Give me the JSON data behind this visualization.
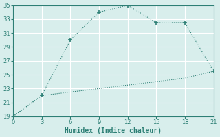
{
  "xlabel": "Humidex (Indice chaleur)",
  "line1_x": [
    0,
    3,
    6,
    9,
    12,
    15,
    18,
    21
  ],
  "line1_y": [
    19,
    22,
    30,
    34,
    35,
    32.5,
    32.5,
    25.5
  ],
  "line2_x": [
    0,
    3,
    6,
    9,
    12,
    15,
    18,
    21
  ],
  "line2_y": [
    19,
    22,
    22.5,
    23,
    23.5,
    24,
    24.5,
    25.5
  ],
  "line_color": "#2d7f75",
  "marker": "+",
  "bg_color": "#d8eeec",
  "grid_color": "#ffffff",
  "xlim": [
    0,
    21
  ],
  "ylim": [
    19,
    35
  ],
  "xticks": [
    0,
    3,
    6,
    9,
    12,
    15,
    18,
    21
  ],
  "yticks": [
    19,
    21,
    23,
    25,
    27,
    29,
    31,
    33,
    35
  ],
  "tick_fontsize": 6,
  "label_fontsize": 7
}
